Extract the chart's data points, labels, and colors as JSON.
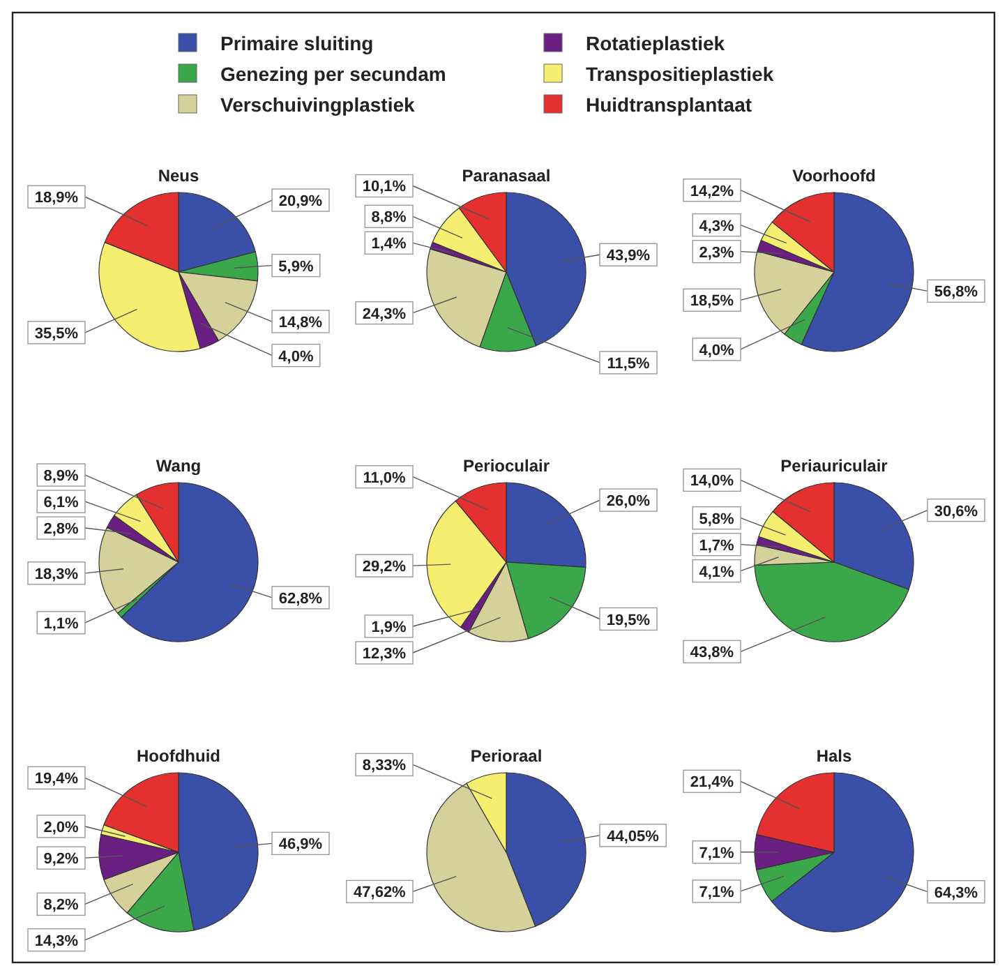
{
  "chart_data": [
    {
      "type": "pie",
      "title": "Neus",
      "legend": "top",
      "categories": [
        "Primaire sluiting",
        "Genezing per secundam",
        "Verschuivingplastiek",
        "Rotatieplastiek",
        "Transpositieplastiek",
        "Huidtransplantaat"
      ],
      "colors": [
        "#3a4fa8",
        "#3aa84a",
        "#d6d09a",
        "#6b1f82",
        "#f5ee70",
        "#e53030"
      ],
      "values": [
        20.9,
        5.9,
        14.8,
        4.0,
        35.5,
        18.9
      ],
      "value_labels": [
        "20,9%",
        "5,9%",
        "14,8%",
        "4,0%",
        "35,5%",
        "18,9%"
      ]
    },
    {
      "type": "pie",
      "title": "Paranasaal",
      "categories": [
        null,
        null,
        null,
        null,
        null,
        null
      ],
      "colors": [
        "#3a4fa8",
        "#3aa84a",
        "#d6d09a",
        "#6b1f82",
        "#f5ee70",
        "#e53030"
      ],
      "values": [
        43.9,
        11.5,
        24.3,
        1.4,
        8.8,
        10.1
      ],
      "value_labels": [
        "43,9%",
        "11,5%",
        "24,3%",
        "1,4%",
        "8,8%",
        "10,1%"
      ]
    },
    {
      "type": "pie",
      "title": "Voorhoofd",
      "categories": [
        null,
        null,
        null,
        null,
        null,
        null
      ],
      "colors": [
        "#3a4fa8",
        "#3aa84a",
        "#d6d09a",
        "#6b1f82",
        "#f5ee70",
        "#e53030"
      ],
      "values": [
        56.8,
        4.0,
        18.5,
        2.3,
        4.3,
        14.2
      ],
      "value_labels": [
        "56,8%",
        "4,0%",
        "18,5%",
        "2,3%",
        "4,3%",
        "14,2%"
      ]
    },
    {
      "type": "pie",
      "title": "Wang",
      "categories": [
        null,
        null,
        null,
        null,
        null,
        null
      ],
      "colors": [
        "#3a4fa8",
        "#3aa84a",
        "#d6d09a",
        "#6b1f82",
        "#f5ee70",
        "#e53030"
      ],
      "values": [
        62.8,
        1.1,
        18.3,
        2.8,
        6.1,
        8.9
      ],
      "value_labels": [
        "62,8%",
        "1,1%",
        "18,3%",
        "2,8%",
        "6,1%",
        "8,9%"
      ]
    },
    {
      "type": "pie",
      "title": "Perioculair",
      "categories": [
        null,
        null,
        null,
        null,
        null,
        null
      ],
      "colors": [
        "#3a4fa8",
        "#3aa84a",
        "#d6d09a",
        "#6b1f82",
        "#f5ee70",
        "#e53030"
      ],
      "values": [
        26.0,
        19.5,
        12.3,
        1.9,
        29.2,
        11.0
      ],
      "value_labels": [
        "26,0%",
        "19,5%",
        "12,3%",
        "1,9%",
        "29,2%",
        "11,0%"
      ]
    },
    {
      "type": "pie",
      "title": "Periauriculair",
      "categories": [
        null,
        null,
        null,
        null,
        null,
        null
      ],
      "colors": [
        "#3a4fa8",
        "#3aa84a",
        "#d6d09a",
        "#6b1f82",
        "#f5ee70",
        "#e53030"
      ],
      "values": [
        30.6,
        43.8,
        4.1,
        1.7,
        5.8,
        14.0
      ],
      "value_labels": [
        "30,6%",
        "43,8%",
        "4,1%",
        "1,7%",
        "5,8%",
        "14,0%"
      ]
    },
    {
      "type": "pie",
      "title": "Hoofdhuid",
      "categories": [
        null,
        null,
        null,
        null,
        null,
        null
      ],
      "colors": [
        "#3a4fa8",
        "#3aa84a",
        "#d6d09a",
        "#6b1f82",
        "#f5ee70",
        "#e53030"
      ],
      "values": [
        46.9,
        14.3,
        8.2,
        9.2,
        2.0,
        19.4
      ],
      "value_labels": [
        "46,9%",
        "14,3%",
        "8,2%",
        "9,2%",
        "2,0%",
        "19,4%"
      ]
    },
    {
      "type": "pie",
      "title": "Perioraal",
      "categories": [
        null,
        null,
        null
      ],
      "colors": [
        "#3a4fa8",
        "#d6d09a",
        "#f5ee70"
      ],
      "values": [
        44.05,
        47.62,
        8.33
      ],
      "value_labels": [
        "44,05%",
        "47,62%",
        "8,33%"
      ]
    },
    {
      "type": "pie",
      "title": "Hals",
      "categories": [
        null,
        null,
        null,
        null
      ],
      "colors": [
        "#3a4fa8",
        "#3aa84a",
        "#6b1f82",
        "#e53030"
      ],
      "values": [
        64.3,
        7.1,
        7.1,
        21.4
      ],
      "value_labels": [
        "64,3%",
        "7,1%",
        "7,1%",
        "21,4%"
      ]
    }
  ]
}
